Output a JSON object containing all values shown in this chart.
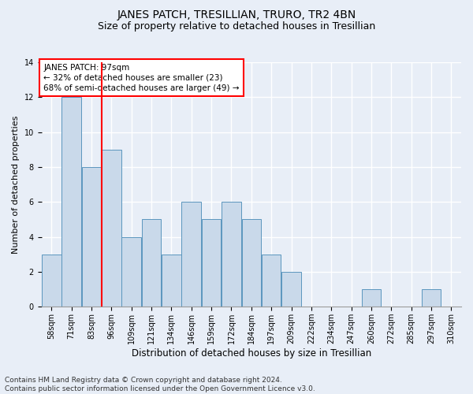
{
  "title": "JANES PATCH, TRESILLIAN, TRURO, TR2 4BN",
  "subtitle": "Size of property relative to detached houses in Tresillian",
  "xlabel": "Distribution of detached houses by size in Tresillian",
  "ylabel": "Number of detached properties",
  "categories": [
    "58sqm",
    "71sqm",
    "83sqm",
    "96sqm",
    "109sqm",
    "121sqm",
    "134sqm",
    "146sqm",
    "159sqm",
    "172sqm",
    "184sqm",
    "197sqm",
    "209sqm",
    "222sqm",
    "234sqm",
    "247sqm",
    "260sqm",
    "272sqm",
    "285sqm",
    "297sqm",
    "310sqm"
  ],
  "values": [
    3,
    12,
    8,
    9,
    4,
    5,
    3,
    6,
    5,
    6,
    5,
    3,
    2,
    0,
    0,
    0,
    1,
    0,
    0,
    1,
    0
  ],
  "bar_color": "#c9d9ea",
  "bar_edge_color": "#5b96be",
  "red_line_index": 3,
  "annotation_text": "JANES PATCH: 97sqm\n← 32% of detached houses are smaller (23)\n68% of semi-detached houses are larger (49) →",
  "annotation_box_color": "white",
  "annotation_box_edge_color": "red",
  "ylim": [
    0,
    14
  ],
  "yticks": [
    0,
    2,
    4,
    6,
    8,
    10,
    12,
    14
  ],
  "background_color": "#e8eef7",
  "grid_color": "white",
  "footnote": "Contains HM Land Registry data © Crown copyright and database right 2024.\nContains public sector information licensed under the Open Government Licence v3.0.",
  "title_fontsize": 10,
  "subtitle_fontsize": 9,
  "xlabel_fontsize": 8.5,
  "ylabel_fontsize": 8,
  "tick_fontsize": 7,
  "annot_fontsize": 7.5,
  "footnote_fontsize": 6.5
}
